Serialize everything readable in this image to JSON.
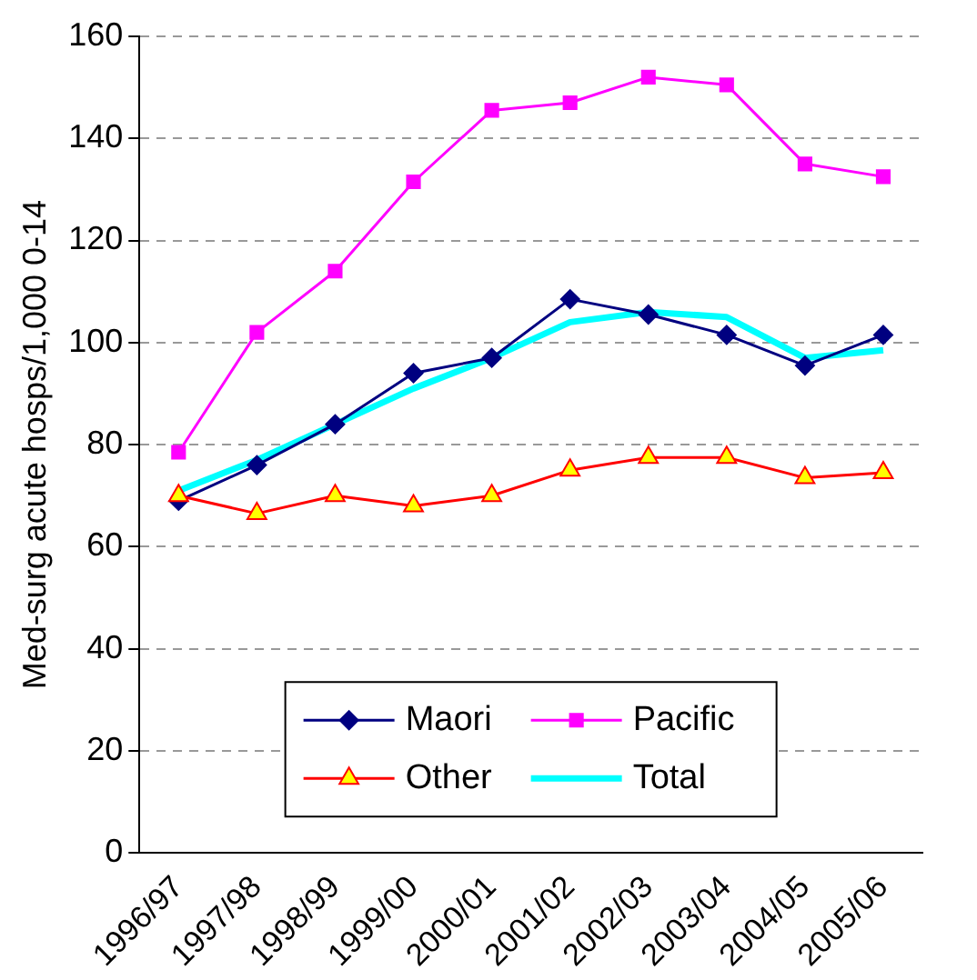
{
  "chart_data": {
    "type": "line",
    "ylabel": "Med-surg acute hosps/1,000 0-14",
    "categories": [
      "1996/97",
      "1997/98",
      "1998/99",
      "1999/00",
      "2000/01",
      "2001/02",
      "2002/03",
      "2003/04",
      "2004/05",
      "2005/06"
    ],
    "series": [
      {
        "name": "Maori",
        "color": "#000080",
        "marker": "diamond",
        "values": [
          69,
          76,
          84,
          94,
          97,
          108.5,
          105.5,
          101.5,
          95.5,
          101.5
        ]
      },
      {
        "name": "Pacific",
        "color": "#ff00ff",
        "marker": "square",
        "values": [
          78.5,
          102,
          114,
          131.5,
          145.5,
          147,
          152,
          150.5,
          135,
          132.5
        ]
      },
      {
        "name": "Other",
        "color": "#ff0000",
        "marker": "triangle",
        "values": [
          70,
          66.5,
          70,
          68,
          70,
          75,
          77.5,
          77.5,
          73.5,
          74.5
        ]
      },
      {
        "name": "Total",
        "color": "#00ffff",
        "marker": "none",
        "values": [
          71,
          77,
          84,
          91,
          97,
          104,
          106,
          105,
          97,
          98.5
        ]
      }
    ],
    "ylim": [
      0,
      160
    ],
    "yticks": [
      0,
      20,
      40,
      60,
      80,
      100,
      120,
      140,
      160
    ],
    "grid": "y",
    "legend": "bottom",
    "line_style": "solid"
  }
}
